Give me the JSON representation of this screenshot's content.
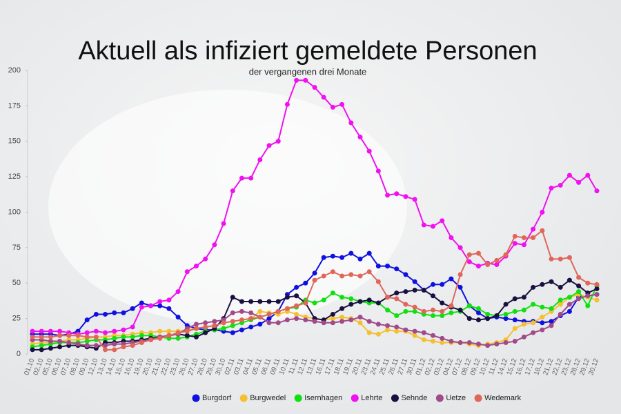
{
  "chart_data": {
    "type": "line",
    "title": "Aktuell als infiziert gemeldete Personen",
    "subtitle": "der vergangenen drei Monate",
    "categories": [
      "01.10",
      "02.10",
      "05.10",
      "06.10",
      "07.10",
      "08.10",
      "09.10",
      "12.10",
      "13.10",
      "14.10",
      "15.10",
      "16.10",
      "19.10",
      "20.10",
      "21.10",
      "22.10",
      "23.10",
      "26.10",
      "27.10",
      "28.10",
      "29.10",
      "30.10",
      "02.11",
      "03.11",
      "04.11",
      "05.11",
      "06.11",
      "09.11",
      "10.11",
      "11.11",
      "12.11",
      "13.11",
      "16.11",
      "17.11",
      "18.11",
      "19.11",
      "20.11",
      "23.11",
      "24.11",
      "25.11",
      "26.11",
      "27.11",
      "30.11",
      "01.12",
      "02.12",
      "03.12",
      "04.12",
      "07.12",
      "08.12",
      "09.12",
      "10.12",
      "11.12",
      "14.12",
      "15.12",
      "16.12",
      "17.12",
      "18.12",
      "21.12",
      "22.12",
      "23.12",
      "28.12",
      "29.12",
      "30.12"
    ],
    "ylim": [
      0,
      200
    ],
    "yticks": [
      0,
      25,
      50,
      75,
      100,
      125,
      150,
      175,
      200
    ],
    "legend": "bottom",
    "series": [
      {
        "name": "Burgdorf",
        "color": "#1010e0",
        "values": [
          14,
          14,
          14,
          13,
          14,
          16,
          24,
          28,
          28,
          29,
          29,
          32,
          36,
          34,
          34,
          32,
          26,
          20,
          18,
          17,
          17,
          16,
          15,
          17,
          19,
          21,
          25,
          30,
          42,
          47,
          50,
          57,
          68,
          69,
          68,
          71,
          67,
          71,
          62,
          62,
          60,
          56,
          51,
          45,
          49,
          49,
          53,
          47,
          34,
          29,
          25,
          26,
          25,
          24,
          23,
          23,
          22,
          23,
          27,
          30,
          40,
          41,
          42
        ]
      },
      {
        "name": "Burgwedel",
        "color": "#f5c030",
        "values": [
          7,
          8,
          8,
          9,
          10,
          10,
          11,
          12,
          12,
          13,
          13,
          14,
          15,
          15,
          16,
          16,
          16,
          17,
          18,
          19,
          20,
          22,
          23,
          24,
          25,
          30,
          29,
          28,
          30,
          28,
          26,
          25,
          24,
          25,
          26,
          25,
          22,
          15,
          14,
          17,
          16,
          16,
          13,
          10,
          9,
          8,
          8,
          8,
          7,
          6,
          7,
          8,
          10,
          18,
          21,
          22,
          26,
          30,
          35,
          40,
          42,
          40,
          38
        ]
      },
      {
        "name": "Isernhagen",
        "color": "#10e010",
        "values": [
          5,
          6,
          7,
          8,
          8,
          8,
          9,
          10,
          10,
          11,
          12,
          12,
          13,
          13,
          12,
          11,
          11,
          12,
          14,
          16,
          17,
          18,
          20,
          22,
          24,
          26,
          28,
          30,
          32,
          33,
          38,
          36,
          38,
          43,
          40,
          39,
          37,
          36,
          36,
          31,
          27,
          30,
          30,
          28,
          27,
          27,
          29,
          30,
          34,
          32,
          28,
          27,
          28,
          30,
          31,
          35,
          33,
          32,
          38,
          40,
          44,
          34,
          48
        ]
      },
      {
        "name": "Lehrte",
        "color": "#f010f0",
        "values": [
          16,
          16,
          16,
          16,
          15,
          14,
          15,
          16,
          15,
          16,
          17,
          19,
          33,
          34,
          37,
          38,
          44,
          58,
          62,
          67,
          77,
          92,
          115,
          124,
          124,
          137,
          147,
          150,
          176,
          193,
          193,
          188,
          181,
          174,
          176,
          163,
          153,
          143,
          129,
          112,
          113,
          111,
          109,
          91,
          90,
          94,
          82,
          75,
          65,
          62,
          64,
          63,
          69,
          78,
          77,
          88,
          100,
          117,
          119,
          126,
          121,
          126,
          115
        ]
      },
      {
        "name": "Sehnde",
        "color": "#1a1040",
        "values": [
          3,
          3,
          4,
          5,
          6,
          6,
          5,
          4,
          8,
          8,
          9,
          9,
          10,
          11,
          12,
          13,
          14,
          13,
          12,
          15,
          18,
          25,
          40,
          37,
          37,
          37,
          37,
          37,
          40,
          41,
          36,
          25,
          24,
          28,
          32,
          35,
          37,
          38,
          36,
          40,
          43,
          44,
          45,
          45,
          41,
          36,
          33,
          31,
          25,
          24,
          25,
          27,
          35,
          39,
          40,
          47,
          49,
          51,
          47,
          52,
          48,
          43,
          46
        ]
      },
      {
        "name": "Uetze",
        "color": "#a04a8a",
        "values": [
          10,
          10,
          9,
          9,
          8,
          7,
          6,
          6,
          6,
          7,
          7,
          8,
          9,
          10,
          12,
          13,
          14,
          18,
          21,
          22,
          23,
          24,
          29,
          30,
          29,
          26,
          22,
          22,
          24,
          25,
          24,
          23,
          22,
          22,
          23,
          24,
          26,
          23,
          21,
          20,
          19,
          17,
          16,
          15,
          13,
          11,
          9,
          8,
          8,
          7,
          6,
          7,
          8,
          9,
          12,
          15,
          17,
          20,
          28,
          35,
          39,
          41,
          42
        ]
      },
      {
        "name": "Wedemark",
        "color": "#e0665a",
        "values": [
          12,
          12,
          12,
          13,
          13,
          13,
          12,
          12,
          3,
          3,
          5,
          6,
          8,
          10,
          11,
          13,
          15,
          16,
          18,
          19,
          20,
          22,
          23,
          24,
          25,
          26,
          28,
          30,
          32,
          34,
          36,
          52,
          55,
          58,
          55,
          56,
          55,
          58,
          51,
          40,
          39,
          35,
          33,
          30,
          31,
          30,
          34,
          56,
          70,
          71,
          63,
          66,
          70,
          83,
          82,
          82,
          87,
          67,
          67,
          68,
          54,
          50,
          49
        ]
      }
    ]
  }
}
